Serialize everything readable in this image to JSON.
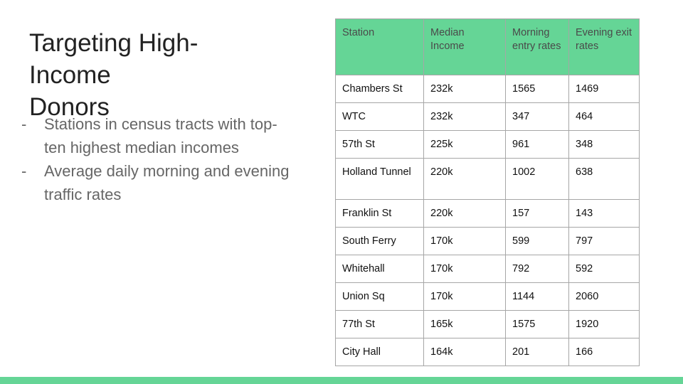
{
  "slide": {
    "title_lines": [
      "Targeting High-",
      "Income",
      "Donors"
    ],
    "bullets": [
      "Stations in census tracts with top-ten highest median incomes",
      "Average daily morning and evening traffic rates"
    ],
    "bullet_marker": "-",
    "accent_color": "#65d596"
  },
  "table": {
    "headers": [
      "Station",
      "Median Income",
      "Morning entry rates",
      "Evening exit rates"
    ],
    "rows": [
      [
        "Chambers St",
        "232k",
        "1565",
        "1469"
      ],
      [
        "WTC",
        "232k",
        "347",
        "464"
      ],
      [
        "57th St",
        "225k",
        "961",
        "348"
      ],
      [
        "Holland Tunnel",
        "220k",
        "1002",
        "638"
      ],
      [
        "Franklin St",
        "220k",
        "157",
        "143"
      ],
      [
        "South Ferry",
        "170k",
        "599",
        "797"
      ],
      [
        "Whitehall",
        "170k",
        "792",
        "592"
      ],
      [
        "Union Sq",
        "170k",
        "1144",
        "2060"
      ],
      [
        "77th St",
        "165k",
        "1575",
        "1920"
      ],
      [
        "City Hall",
        "164k",
        "201",
        "166"
      ]
    ]
  }
}
